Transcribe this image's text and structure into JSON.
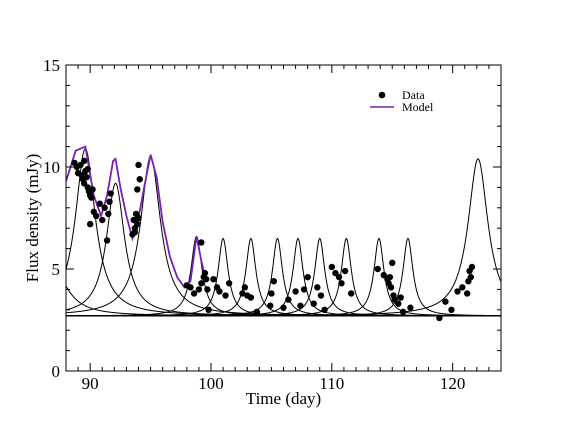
{
  "chart_data": {
    "type": "scatter",
    "title": "",
    "xlabel": "Time (day)",
    "ylabel": "Flux density (mJy)",
    "xlim": [
      88,
      124
    ],
    "ylim": [
      0,
      15
    ],
    "xticks": [
      90,
      100,
      110,
      120
    ],
    "yticks": [
      0,
      5,
      10,
      15
    ],
    "grid": false,
    "legend": {
      "placement": "top-right",
      "entries": [
        "Data",
        "Model"
      ]
    },
    "colors": {
      "data": "#000000",
      "model": "#7a1fb8",
      "components": "#000000",
      "axes": "#000000"
    },
    "baseline": 2.7,
    "components": [
      {
        "t0": 87.0,
        "amp": 2.2,
        "width": 1.4
      },
      {
        "t0": 89.6,
        "amp": 8.2,
        "width": 1.0
      },
      {
        "t0": 92.1,
        "amp": 6.5,
        "width": 0.9
      },
      {
        "t0": 95.0,
        "amp": 7.8,
        "width": 1.0
      },
      {
        "t0": 98.8,
        "amp": 3.9,
        "width": 0.55
      },
      {
        "t0": 101.0,
        "amp": 3.8,
        "width": 0.5
      },
      {
        "t0": 103.3,
        "amp": 3.8,
        "width": 0.5
      },
      {
        "t0": 105.5,
        "amp": 3.8,
        "width": 0.5
      },
      {
        "t0": 107.2,
        "amp": 3.8,
        "width": 0.5
      },
      {
        "t0": 109.0,
        "amp": 3.8,
        "width": 0.5
      },
      {
        "t0": 111.2,
        "amp": 3.8,
        "width": 0.5
      },
      {
        "t0": 113.9,
        "amp": 3.8,
        "width": 0.5
      },
      {
        "t0": 116.3,
        "amp": 3.8,
        "width": 0.5
      },
      {
        "t0": 122.1,
        "amp": 7.7,
        "width": 1.0
      }
    ],
    "model": {
      "name": "Model",
      "x": [
        88.0,
        88.8,
        89.6,
        90.3,
        90.9,
        91.4,
        91.9,
        92.1,
        92.5,
        93.0,
        93.5,
        94.0,
        94.5,
        95.0,
        95.5,
        96.0,
        96.6,
        97.2,
        97.8,
        98.3,
        98.8,
        99.2,
        99.6
      ],
      "y": [
        9.3,
        10.8,
        11.0,
        8.6,
        7.6,
        8.6,
        10.3,
        10.4,
        9.0,
        7.6,
        6.5,
        7.5,
        9.1,
        10.6,
        9.5,
        7.3,
        5.6,
        4.6,
        4.1,
        4.4,
        6.6,
        5.4,
        4.4
      ]
    },
    "series": [
      {
        "name": "Data",
        "x": [
          88.7,
          88.9,
          89.0,
          89.2,
          89.4,
          89.5,
          89.6,
          89.7,
          89.8,
          89.9,
          90.0,
          90.1,
          90.2,
          89.3,
          89.5,
          89.8,
          90.0,
          90.3,
          90.5,
          90.8,
          91.0,
          91.2,
          91.4,
          91.6,
          91.7,
          91.5,
          93.5,
          93.6,
          93.7,
          93.8,
          93.9,
          94.0,
          94.1,
          93.7,
          93.9,
          94.0,
          98.0,
          98.3,
          98.6,
          99.0,
          99.2,
          99.4,
          99.5,
          99.6,
          99.7,
          99.2,
          99.8,
          100.2,
          100.5,
          100.7,
          101.2,
          101.5,
          102.6,
          102.8,
          103.0,
          103.3,
          103.8,
          104.9,
          105.0,
          105.2,
          106.0,
          106.4,
          107.0,
          107.4,
          107.7,
          108.0,
          108.5,
          108.8,
          109.1,
          109.4,
          110.0,
          110.3,
          110.6,
          110.8,
          111.1,
          111.6,
          113.8,
          114.3,
          114.6,
          114.7,
          114.8,
          114.9,
          115.0,
          115.1,
          115.2,
          115.5,
          115.7,
          115.9,
          116.5,
          118.9,
          119.4,
          119.9,
          120.4,
          120.8,
          121.2,
          121.3,
          121.4,
          121.5,
          121.6
        ],
        "y": [
          10.2,
          10.0,
          9.7,
          10.1,
          9.4,
          10.3,
          9.8,
          9.5,
          9.0,
          8.8,
          8.6,
          8.5,
          8.9,
          9.6,
          9.2,
          9.9,
          7.2,
          7.8,
          7.6,
          8.2,
          7.4,
          8.0,
          6.4,
          8.3,
          8.7,
          7.7,
          6.7,
          7.4,
          7.0,
          7.7,
          8.9,
          10.1,
          9.4,
          6.8,
          7.2,
          7.5,
          4.2,
          4.1,
          3.8,
          4.0,
          4.3,
          4.6,
          4.8,
          4.5,
          4.0,
          6.3,
          3.0,
          4.5,
          4.1,
          3.9,
          3.7,
          4.3,
          3.8,
          4.1,
          3.7,
          3.6,
          2.9,
          3.2,
          3.8,
          4.4,
          3.1,
          3.5,
          3.9,
          3.2,
          4.0,
          4.6,
          3.3,
          4.1,
          3.7,
          3.0,
          5.1,
          4.8,
          4.6,
          4.3,
          4.9,
          3.8,
          5.0,
          4.7,
          4.5,
          4.3,
          4.6,
          4.1,
          5.3,
          3.7,
          3.5,
          3.3,
          3.6,
          2.9,
          3.1,
          2.6,
          3.4,
          3.0,
          3.9,
          4.1,
          3.8,
          4.4,
          4.9,
          4.6,
          5.1
        ]
      }
    ]
  }
}
